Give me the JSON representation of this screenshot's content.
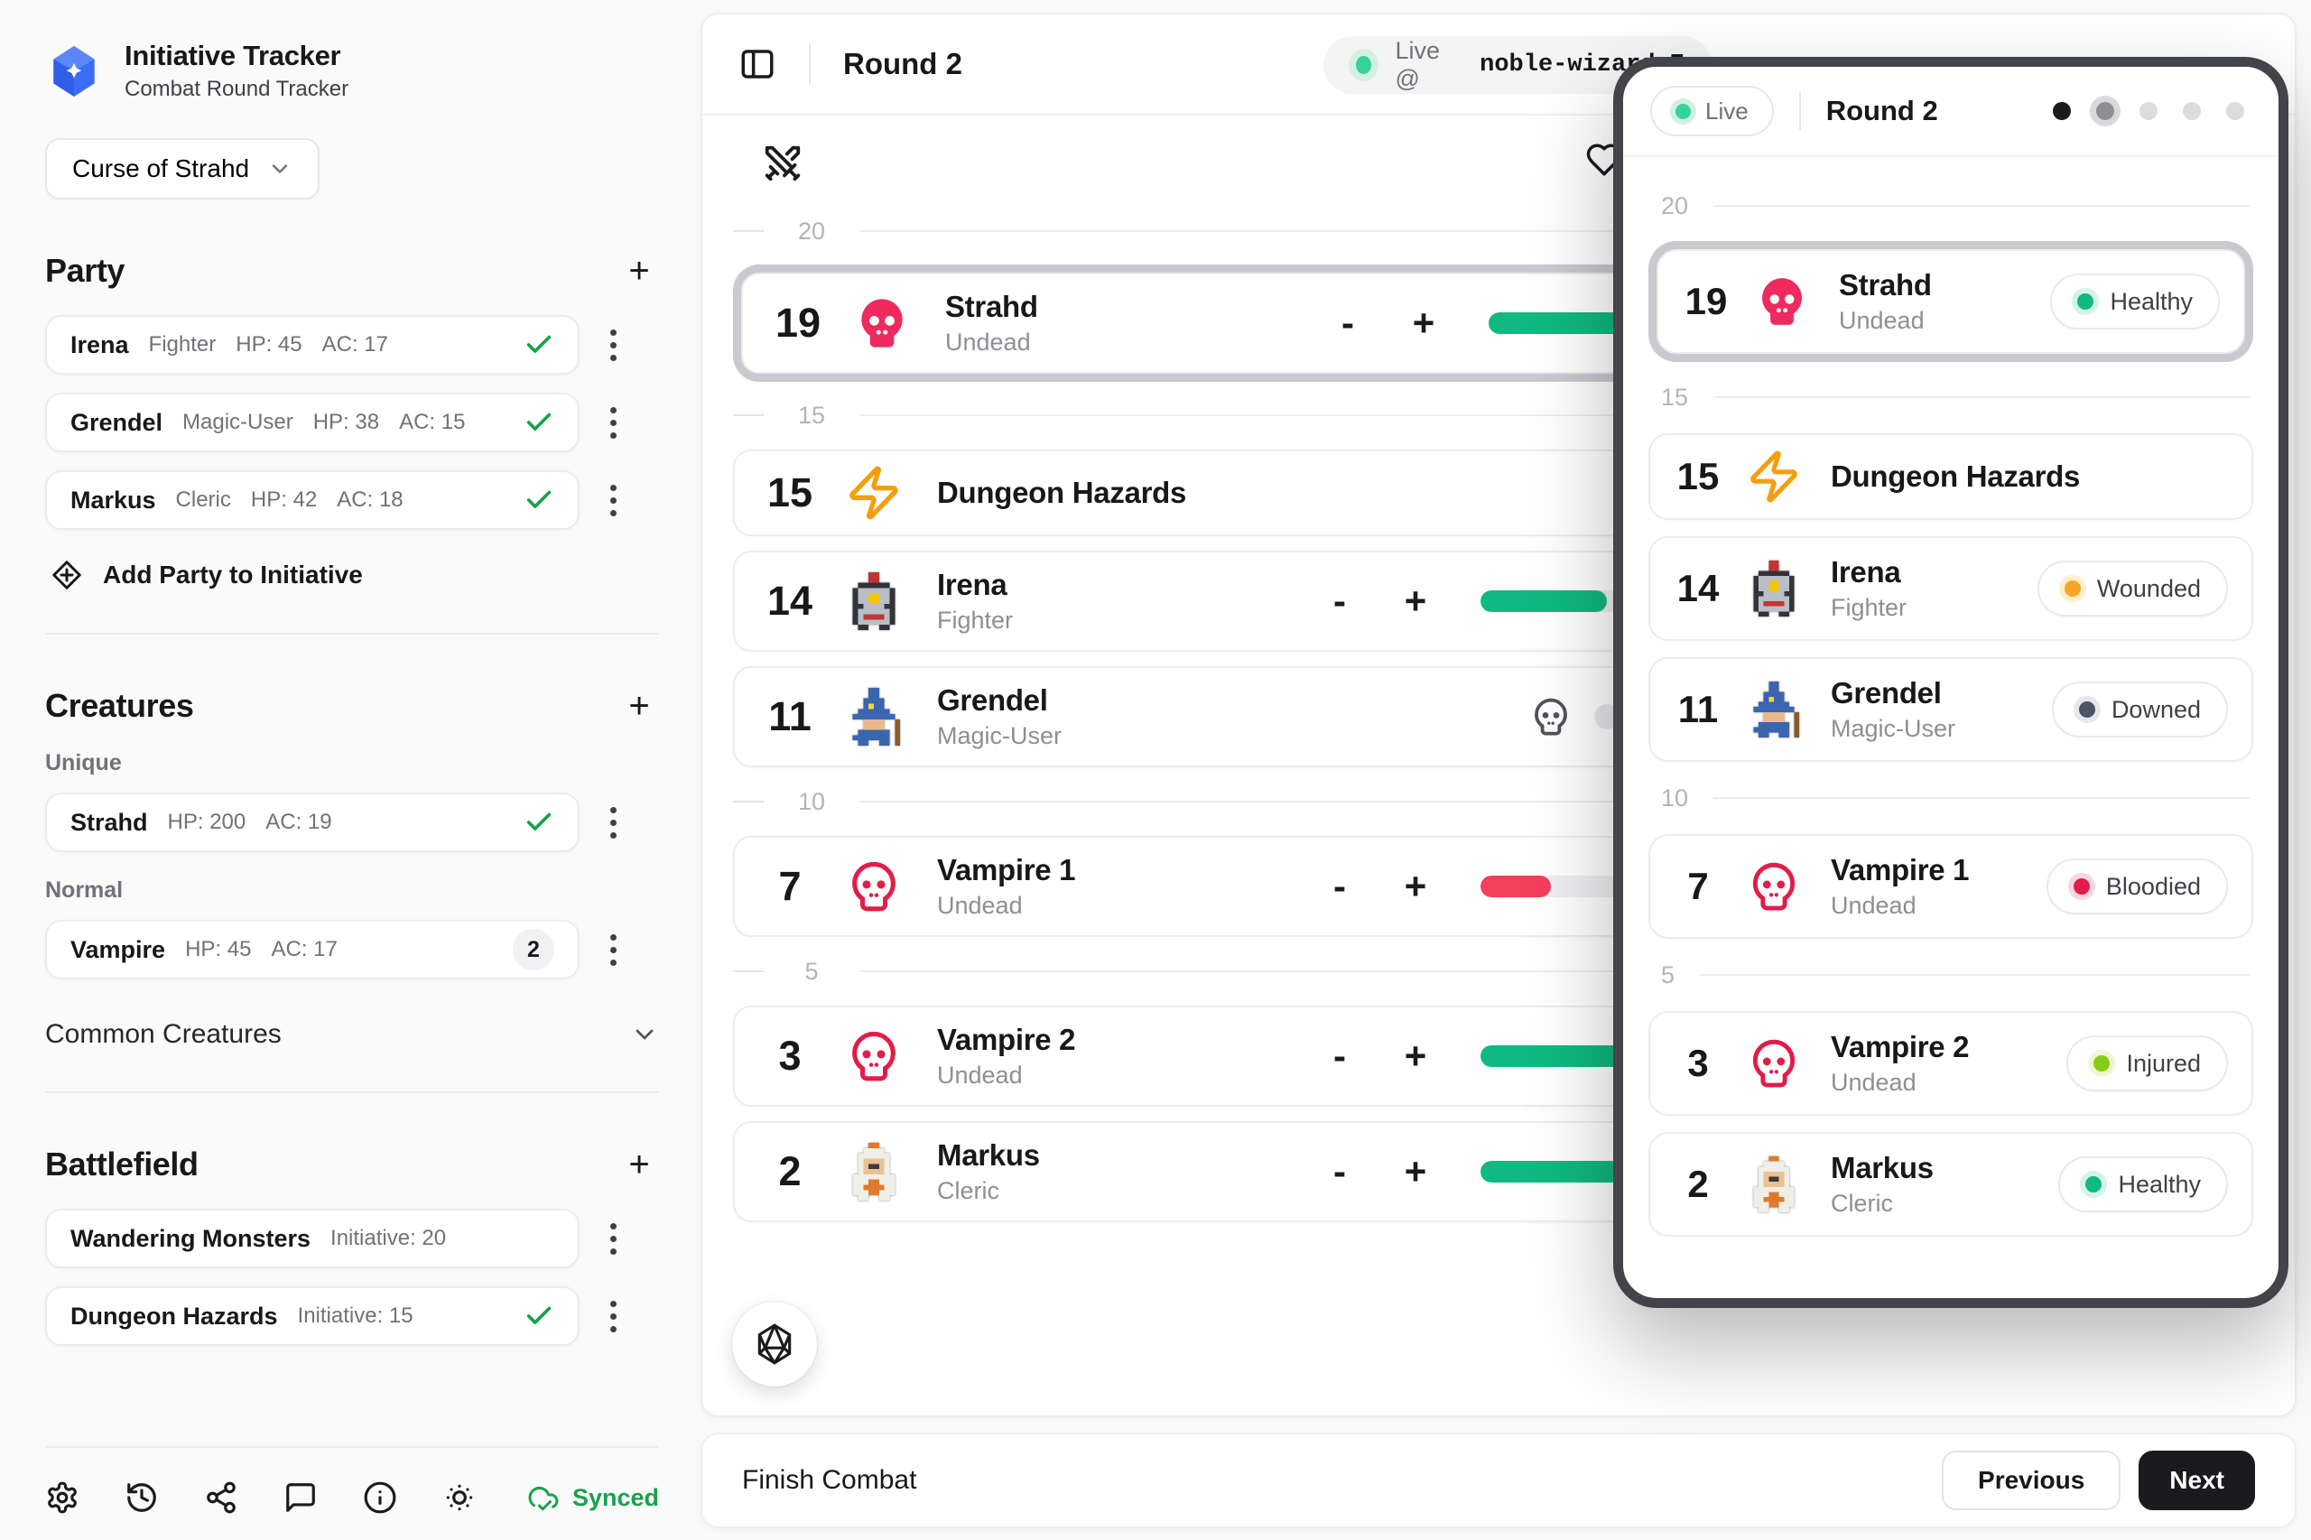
{
  "colors": {
    "accent_green": "#10b981",
    "check_green": "#16a34a",
    "strahd_pink": "#ef2a5e",
    "vampire_red": "#e11d48",
    "hazard_orange": "#f59e0b",
    "injured_lime": "#84cc16",
    "downed_gray": "#4b5563",
    "wounded_orange": "#f5a623",
    "brand_blue": "#3b6ef6"
  },
  "app": {
    "title": "Initiative Tracker",
    "subtitle": "Combat Round Tracker",
    "campaign": "Curse of Strahd"
  },
  "sidebar": {
    "add_label": "+",
    "party": {
      "heading": "Party",
      "members": [
        {
          "name": "Irena",
          "class": "Fighter",
          "hp_label": "HP: 45",
          "ac_label": "AC: 17",
          "checked": true
        },
        {
          "name": "Grendel",
          "class": "Magic-User",
          "hp_label": "HP: 38",
          "ac_label": "AC: 15",
          "checked": true
        },
        {
          "name": "Markus",
          "class": "Cleric",
          "hp_label": "HP: 42",
          "ac_label": "AC: 18",
          "checked": true
        }
      ],
      "footer_action": "Add Party to Initiative"
    },
    "creatures": {
      "heading": "Creatures",
      "groups": [
        {
          "label": "Unique",
          "items": [
            {
              "name": "Strahd",
              "hp_label": "HP: 200",
              "ac_label": "AC: 19",
              "checked": true
            }
          ]
        },
        {
          "label": "Normal",
          "items": [
            {
              "name": "Vampire",
              "hp_label": "HP: 45",
              "ac_label": "AC: 17",
              "count": "2"
            }
          ]
        }
      ],
      "collapsed_section": "Common Creatures"
    },
    "battlefield": {
      "heading": "Battlefield",
      "items": [
        {
          "name": "Wandering Monsters",
          "initiative_label": "Initiative: 20",
          "checked": false
        },
        {
          "name": "Dungeon Hazards",
          "initiative_label": "Initiative: 15",
          "checked": true
        }
      ]
    },
    "toolbar": {
      "icons": [
        "settings",
        "history",
        "share",
        "comment",
        "info",
        "brightness"
      ],
      "sync_label": "Synced"
    }
  },
  "main": {
    "round_label": "Round 2",
    "live_badge": {
      "prefix": "Live @",
      "code": "noble-wizard-7"
    },
    "sequence": [
      {
        "type": "tick",
        "label": "20"
      },
      {
        "type": "row",
        "index": 0
      },
      {
        "type": "tick",
        "label": "15"
      },
      {
        "type": "row",
        "index": 1
      },
      {
        "type": "row",
        "index": 2
      },
      {
        "type": "row",
        "index": 3
      },
      {
        "type": "tick",
        "label": "10"
      },
      {
        "type": "row",
        "index": 4
      },
      {
        "type": "tick",
        "label": "5"
      },
      {
        "type": "row",
        "index": 5
      },
      {
        "type": "row",
        "index": 6
      }
    ],
    "combatants": [
      {
        "init": "19",
        "name": "Strahd",
        "subtitle": "Undead",
        "icon": "skull-filled",
        "active": true,
        "controls": "hp",
        "bar": {
          "color": "#10b981",
          "frac": 1
        }
      },
      {
        "init": "15",
        "name": "Dungeon Hazards",
        "subtitle": "",
        "icon": "zap",
        "active": false,
        "controls": "none"
      },
      {
        "init": "14",
        "name": "Irena",
        "subtitle": "Fighter",
        "icon": "pixel-knight",
        "active": false,
        "controls": "hp",
        "bar": {
          "color": "#10b981",
          "frac": 0.25
        }
      },
      {
        "init": "11",
        "name": "Grendel",
        "subtitle": "Magic-User",
        "icon": "pixel-wizard",
        "active": false,
        "controls": "downed"
      },
      {
        "init": "7",
        "name": "Vampire 1",
        "subtitle": "Undead",
        "icon": "skull-outline",
        "active": false,
        "controls": "hp",
        "bar": {
          "color": "#f43f5e",
          "frac": 0.14
        }
      },
      {
        "init": "3",
        "name": "Vampire 2",
        "subtitle": "Undead",
        "icon": "skull-outline",
        "active": false,
        "controls": "hp",
        "bar": {
          "color": "#10b981",
          "frac": 1
        }
      },
      {
        "init": "2",
        "name": "Markus",
        "subtitle": "Cleric",
        "icon": "pixel-cleric",
        "active": false,
        "controls": "hp",
        "bar": {
          "color": "#10b981",
          "frac": 1
        }
      }
    ],
    "hp_minus_label": "-",
    "hp_plus_label": "+",
    "finish_label": "Finish Combat",
    "prev_label": "Previous",
    "next_label": "Next"
  },
  "overlay": {
    "live_label": "Live",
    "round_label": "Round 2",
    "pagination": [
      "filled",
      "current",
      "idle",
      "idle",
      "idle"
    ],
    "rows": [
      {
        "type": "tick",
        "label": "20"
      },
      {
        "type": "row",
        "init": "19",
        "name": "Strahd",
        "subtitle": "Undead",
        "icon": "skull-filled",
        "active": true,
        "status": {
          "label": "Healthy",
          "color": "#10b981",
          "halo": "#d6f3e6"
        }
      },
      {
        "type": "tick",
        "label": "15"
      },
      {
        "type": "row",
        "init": "15",
        "name": "Dungeon Hazards",
        "subtitle": "",
        "icon": "zap",
        "active": false
      },
      {
        "type": "row",
        "init": "14",
        "name": "Irena",
        "subtitle": "Fighter",
        "icon": "pixel-knight",
        "active": false,
        "status": {
          "label": "Wounded",
          "color": "#f5a623",
          "halo": "#fdeecd"
        }
      },
      {
        "type": "row",
        "init": "11",
        "name": "Grendel",
        "subtitle": "Magic-User",
        "icon": "pixel-wizard",
        "active": false,
        "status": {
          "label": "Downed",
          "color": "#4b5563",
          "halo": "#e5e7eb"
        }
      },
      {
        "type": "tick",
        "label": "10"
      },
      {
        "type": "row",
        "init": "7",
        "name": "Vampire 1",
        "subtitle": "Undead",
        "icon": "skull-outline",
        "active": false,
        "status": {
          "label": "Bloodied",
          "color": "#e11d48",
          "halo": "#fbd5dd"
        }
      },
      {
        "type": "tick",
        "label": "5"
      },
      {
        "type": "row",
        "init": "3",
        "name": "Vampire 2",
        "subtitle": "Undead",
        "icon": "skull-outline",
        "active": false,
        "status": {
          "label": "Injured",
          "color": "#84cc16",
          "halo": "#edf8d3"
        }
      },
      {
        "type": "row",
        "init": "2",
        "name": "Markus",
        "subtitle": "Cleric",
        "icon": "pixel-cleric",
        "active": false,
        "status": {
          "label": "Healthy",
          "color": "#10b981",
          "halo": "#d6f3e6"
        }
      }
    ]
  }
}
